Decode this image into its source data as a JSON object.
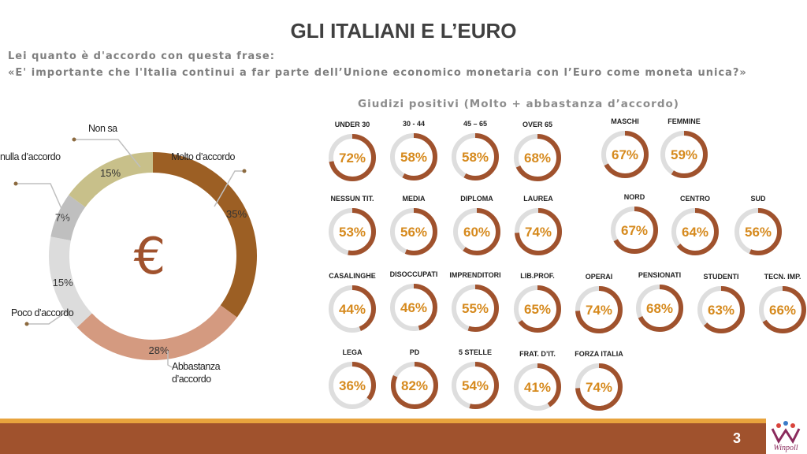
{
  "header": {
    "title": "GLI ITALIANI E L’EURO",
    "question_line1": "Lei quanto è d'accordo con questa frase:",
    "question_line2": "«E' importante che l'Italia continui a far parte dell’Unione economico monetaria con l’Euro come moneta unica?»"
  },
  "section_title": "Giudizi positivi (Molto + abbastanza d’accordo)",
  "donut": {
    "center_symbol": "€",
    "center_color": "#a0522d"
  },
  "colors": {
    "accent": "#a0522d",
    "ring_track": "#dedede",
    "value_text": "#d68a1e",
    "footer_bar": "#a0522d",
    "footer_line": "#e8a33d"
  },
  "chart_data": [
    {
      "type": "pie",
      "variant": "donut",
      "slices": [
        {
          "label": "Molto d’accordo",
          "value": 35,
          "value_label": "35%",
          "color": "#9c5f24"
        },
        {
          "label": "Abbastanza d’accordo",
          "value": 28,
          "value_label": "28%",
          "color": "#d49a80"
        },
        {
          "label": "Poco d’accordo",
          "value": 15,
          "value_label": "15%",
          "color": "#dcdcdc"
        },
        {
          "label": "nulla d’accordo",
          "value": 7,
          "value_label": "7%",
          "color": "#bfbfbf"
        },
        {
          "label": "Non sa",
          "value": 15,
          "value_label": "15%",
          "color": "#c8c08a"
        }
      ]
    },
    {
      "type": "table",
      "title": "Giudizi positivi (Molto + abbastanza d’accordo)",
      "groups": [
        {
          "label": "UNDER 30",
          "value": 72,
          "text": "72%"
        },
        {
          "label": "30 - 44",
          "value": 58,
          "text": "58%"
        },
        {
          "label": "45 – 65",
          "value": 58,
          "text": "58%"
        },
        {
          "label": "OVER 65",
          "value": 68,
          "text": "68%"
        },
        {
          "label": "MASCHI",
          "value": 67,
          "text": "67%"
        },
        {
          "label": "FEMMINE",
          "value": 59,
          "text": "59%"
        },
        {
          "label": "NESSUN TIT.",
          "value": 53,
          "text": "53%"
        },
        {
          "label": "MEDIA",
          "value": 56,
          "text": "56%"
        },
        {
          "label": "DIPLOMA",
          "value": 60,
          "text": "60%"
        },
        {
          "label": "LAUREA",
          "value": 74,
          "text": "74%"
        },
        {
          "label": "NORD",
          "value": 67,
          "text": "67%"
        },
        {
          "label": "CENTRO",
          "value": 64,
          "text": "64%"
        },
        {
          "label": "SUD",
          "value": 56,
          "text": "56%"
        },
        {
          "label": "CASALINGHE",
          "value": 44,
          "text": "44%"
        },
        {
          "label": "DISOCCUPATI",
          "value": 46,
          "text": "46%"
        },
        {
          "label": "IMPRENDITORI",
          "value": 55,
          "text": "55%"
        },
        {
          "label": "LIB.PROF.",
          "value": 65,
          "text": "65%"
        },
        {
          "label": "OPERAI",
          "value": 74,
          "text": "74%"
        },
        {
          "label": "PENSIONATI",
          "value": 68,
          "text": "68%"
        },
        {
          "label": "STUDENTI",
          "value": 63,
          "text": "63%"
        },
        {
          "label": "TECN. IMP.",
          "value": 66,
          "text": "66%"
        },
        {
          "label": "LEGA",
          "value": 36,
          "text": "36%"
        },
        {
          "label": "PD",
          "value": 82,
          "text": "82%"
        },
        {
          "label": "5 STELLE",
          "value": 54,
          "text": "54%"
        },
        {
          "label": "FRAT. D’IT.",
          "value": 41,
          "text": "41%"
        },
        {
          "label": "FORZA ITALIA",
          "value": 74,
          "text": "74%"
        }
      ]
    }
  ],
  "footer": {
    "page_number": "3",
    "logo_text": "Winpoll"
  }
}
